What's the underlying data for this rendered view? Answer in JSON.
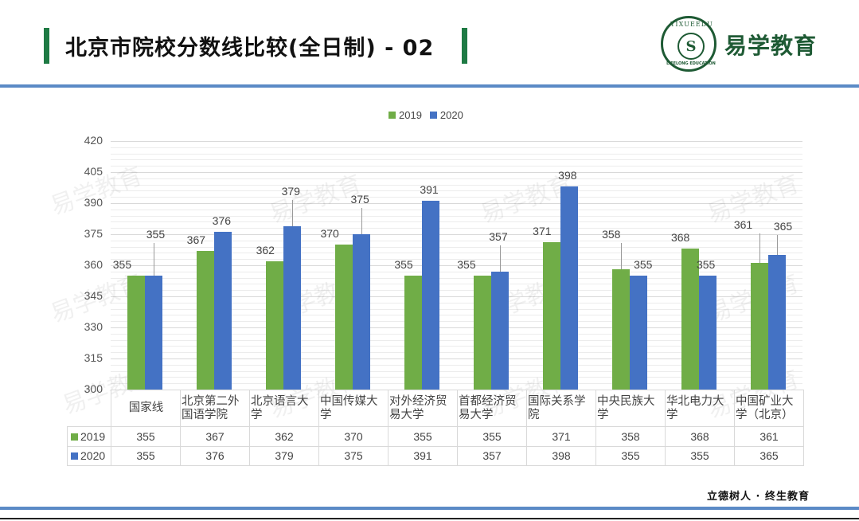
{
  "header": {
    "title": "北京市院校分数线比较(全日制) - 02",
    "logo_text": "易学教育",
    "logo_ring_top": "YIXUEEDU",
    "logo_ring_bottom": "LIFELONG EDUCATION",
    "logo_glyph": "S"
  },
  "footer": {
    "slogan": "立德树人 · 终生教育"
  },
  "watermark": "易学教育",
  "colors": {
    "series_2019": "#70ad47",
    "series_2020": "#4472c4",
    "accent_green": "#1e7a44",
    "rule_blue": "#5b8ac6"
  },
  "chart_data": {
    "type": "bar",
    "title": "",
    "xlabel": "",
    "ylabel": "",
    "ylim": [
      300,
      420
    ],
    "yticks": [
      300,
      315,
      330,
      345,
      360,
      375,
      390,
      405,
      420
    ],
    "grid": true,
    "legend_position": "top",
    "categories": [
      "国家线",
      "北京第二外国语学院",
      "北京语言大学",
      "中国传媒大学",
      "对外经济贸易大学",
      "首都经济贸易大学",
      "国际关系学院",
      "中央民族大学",
      "华北电力大学",
      "中国矿业大学（北京）"
    ],
    "category_lines": [
      [
        "国家线"
      ],
      [
        "北京第二外",
        "国语学院"
      ],
      [
        "北京语言大",
        "学"
      ],
      [
        "中国传媒大",
        "学"
      ],
      [
        "对外经济贸",
        "易大学"
      ],
      [
        "首都经济贸",
        "易大学"
      ],
      [
        "国际关系学",
        "院"
      ],
      [
        "中央民族大",
        "学"
      ],
      [
        "华北电力大",
        "学"
      ],
      [
        "中国矿业大",
        "学（北京）"
      ]
    ],
    "series": [
      {
        "name": "2019",
        "values": [
          355,
          367,
          362,
          370,
          355,
          355,
          371,
          358,
          368,
          361
        ]
      },
      {
        "name": "2020",
        "values": [
          355,
          376,
          379,
          375,
          391,
          357,
          398,
          355,
          355,
          365
        ]
      }
    ],
    "data_table": true
  }
}
